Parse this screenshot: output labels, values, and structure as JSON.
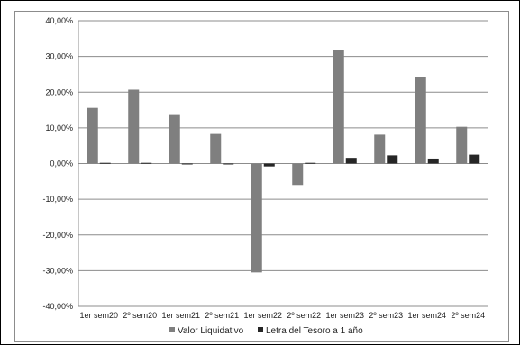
{
  "chart_data": {
    "type": "bar",
    "title": "",
    "xlabel": "",
    "ylabel": "",
    "categories": [
      "1er sem20",
      "2º sem20",
      "1er sem21",
      "2º sem21",
      "1er sem22",
      "2º sem22",
      "1er sem23",
      "2º sem23",
      "1er sem24",
      "2º sem24"
    ],
    "series": [
      {
        "name": "Valor Liquidativo",
        "color": "#7f7f7f",
        "values": [
          15.6,
          20.7,
          13.6,
          8.3,
          -30.5,
          -6.0,
          31.9,
          8.1,
          24.3,
          10.3
        ]
      },
      {
        "name": "Letra del Tesoro a 1 año",
        "color": "#262626",
        "values": [
          0.2,
          0.2,
          -0.2,
          -0.2,
          -0.8,
          0.2,
          1.6,
          2.3,
          1.4,
          2.5
        ]
      }
    ],
    "ylim": [
      -40,
      40
    ],
    "yticks": [
      "-40,00%",
      "-30,00%",
      "-20,00%",
      "-10,00%",
      "0,00%",
      "10,00%",
      "20,00%",
      "30,00%",
      "40,00%"
    ],
    "grid": true,
    "legend_position": "bottom"
  }
}
